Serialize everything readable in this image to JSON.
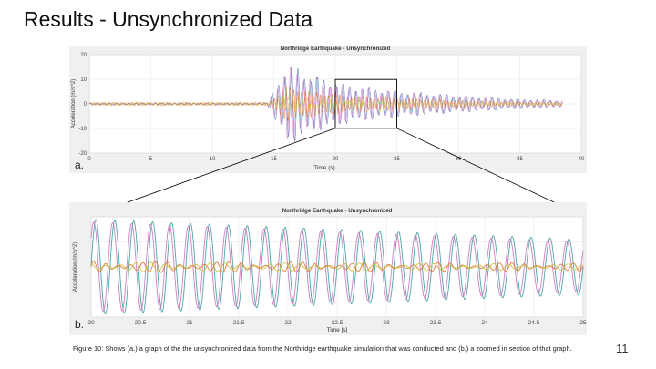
{
  "slide": {
    "title": "Results - Unsynchronized Data",
    "caption": "Figure 10: Shows (a.) a graph of the the unsynchronized data from the Northridge earthquake simulation that was conducted and (b.) a zoomed in section of that graph.",
    "page_number": "11"
  },
  "chart_data": [
    {
      "type": "line",
      "panel_label": "a.",
      "title": "Northridge Earthquake - Unsynchronized",
      "xlabel": "Time (s)",
      "ylabel": "Acceleration (m/s^2)",
      "xlim": [
        0,
        40
      ],
      "ylim": [
        -20,
        20
      ],
      "xticks": [
        "0",
        "5",
        "10",
        "15",
        "20",
        "25",
        "30",
        "35",
        "40"
      ],
      "yticks": [
        "20",
        "10",
        "0",
        "-10",
        "-20"
      ],
      "grid": true,
      "series_colors": [
        "#4a6fb0",
        "#c874c2",
        "#e0702a",
        "#cdbf3a"
      ],
      "envelope": {
        "x": [
          0,
          14.5,
          15.2,
          16,
          17,
          18,
          20,
          22,
          25,
          30,
          35,
          38.5
        ],
        "amplitude": [
          0.3,
          0.5,
          8,
          16,
          15,
          12,
          9,
          7,
          5.5,
          3.5,
          2,
          1.5
        ]
      },
      "zoom_box": {
        "x": [
          20,
          25
        ],
        "y": [
          -4,
          4
        ]
      }
    },
    {
      "type": "line",
      "panel_label": "b.",
      "title": "Northridge Earthquake - Unsynchronized",
      "xlabel": "Time [s]",
      "ylabel": "Acceleration (m/s^2)",
      "xlim": [
        20,
        25
      ],
      "ylim": [
        -4,
        4
      ],
      "xticks": [
        "20",
        "20.5",
        "21",
        "21.5",
        "22",
        "22.5",
        "23",
        "23.5",
        "24",
        "24.5",
        "25"
      ],
      "grid": true,
      "series": [
        {
          "color": "#3f9c9e",
          "amplitude_start": 3.8,
          "amplitude_end": 2.2,
          "cycles": 26
        },
        {
          "color": "#c874c2",
          "amplitude_start": 3.6,
          "amplitude_end": 2.0,
          "cycles": 26
        },
        {
          "color": "#e0702a",
          "amplitude_start": 0.3,
          "amplitude_end": 0.2,
          "cycles": 40
        },
        {
          "color": "#cdbf3a",
          "amplitude_start": 0.25,
          "amplitude_end": 0.15,
          "cycles": 33
        }
      ]
    }
  ]
}
